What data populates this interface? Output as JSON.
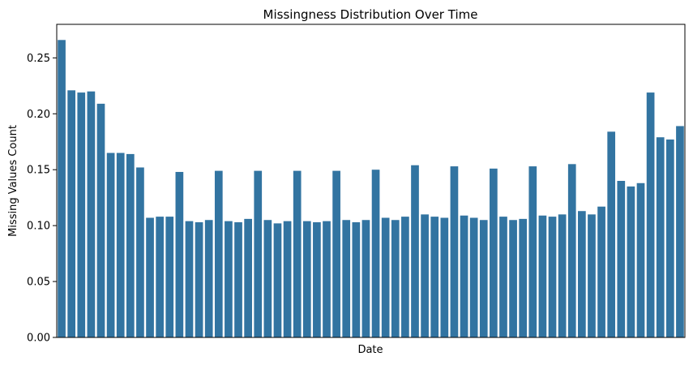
{
  "chart_data": {
    "type": "bar",
    "title": "Missingness Distribution Over Time",
    "xlabel": "Date",
    "ylabel": "Missing Values Count",
    "ylim": [
      0,
      0.28
    ],
    "yticks": [
      "0.00",
      "0.05",
      "0.10",
      "0.15",
      "0.20",
      "0.25"
    ],
    "grid": false,
    "x_tick_labels_visible": false,
    "bar_color": "#3274a1",
    "values": [
      0.266,
      0.221,
      0.219,
      0.22,
      0.209,
      0.165,
      0.165,
      0.164,
      0.152,
      0.107,
      0.108,
      0.108,
      0.148,
      0.104,
      0.103,
      0.105,
      0.149,
      0.104,
      0.103,
      0.106,
      0.149,
      0.105,
      0.102,
      0.104,
      0.149,
      0.104,
      0.103,
      0.104,
      0.149,
      0.105,
      0.103,
      0.105,
      0.15,
      0.107,
      0.105,
      0.108,
      0.154,
      0.11,
      0.108,
      0.107,
      0.153,
      0.109,
      0.107,
      0.105,
      0.151,
      0.108,
      0.105,
      0.106,
      0.153,
      0.109,
      0.108,
      0.11,
      0.155,
      0.113,
      0.11,
      0.117,
      0.184,
      0.14,
      0.135,
      0.138,
      0.219,
      0.179,
      0.177,
      0.189
    ]
  }
}
